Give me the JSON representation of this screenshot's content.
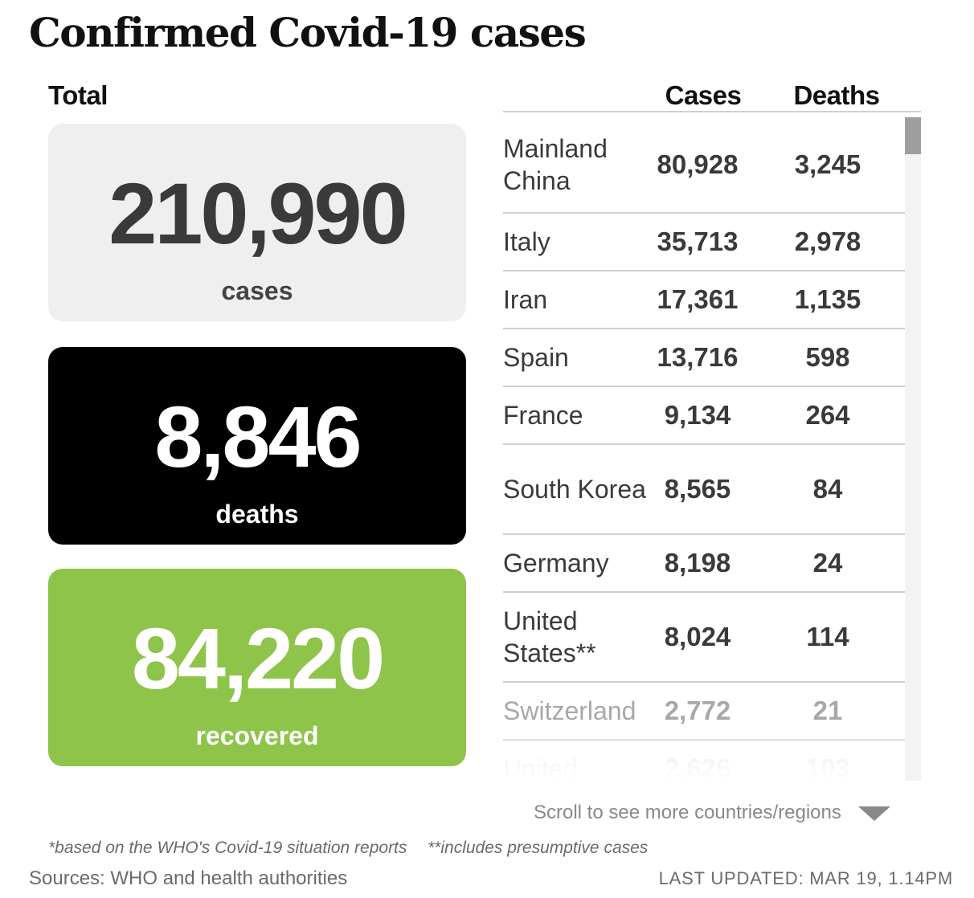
{
  "title": "Confirmed Covid-19 cases",
  "totals": {
    "label": "Total",
    "cases": {
      "value": "210,990",
      "label": "cases"
    },
    "deaths": {
      "value": "8,846",
      "label": "deaths"
    },
    "recovered": {
      "value": "84,220",
      "label": "recovered"
    }
  },
  "colors": {
    "cases_card": "#efefef",
    "deaths_card": "#000000",
    "recovered_card": "#8dc449",
    "text": "#3a3a3a"
  },
  "table": {
    "headers": {
      "cases": "Cases",
      "deaths": "Deaths"
    },
    "scroll_hint": "Scroll to see more countries/regions",
    "scroll_icon": "chevron-down-icon"
  },
  "chart_data": {
    "type": "table",
    "columns": [
      "",
      "Cases",
      "Deaths"
    ],
    "rows": [
      {
        "country": "Mainland China",
        "cases": "80,928",
        "deaths": "3,245"
      },
      {
        "country": "Italy",
        "cases": "35,713",
        "deaths": "2,978"
      },
      {
        "country": "Iran",
        "cases": "17,361",
        "deaths": "1,135"
      },
      {
        "country": "Spain",
        "cases": "13,716",
        "deaths": "598"
      },
      {
        "country": "France",
        "cases": "9,134",
        "deaths": "264"
      },
      {
        "country": "South Korea",
        "cases": "8,565",
        "deaths": "84"
      },
      {
        "country": "Germany",
        "cases": "8,198",
        "deaths": "24"
      },
      {
        "country": "United States**",
        "cases": "8,024",
        "deaths": "114"
      },
      {
        "country": "Switzerland",
        "cases": "2,772",
        "deaths": "21"
      },
      {
        "country": "United",
        "cases": "2,626",
        "deaths": "103"
      }
    ]
  },
  "footnotes": {
    "who": "*based on the WHO's Covid-19 situation reports",
    "presumptive": "**includes presumptive cases"
  },
  "sources": "Sources: WHO and health authorities",
  "last_updated": "LAST UPDATED: MAR 19, 1.14PM"
}
